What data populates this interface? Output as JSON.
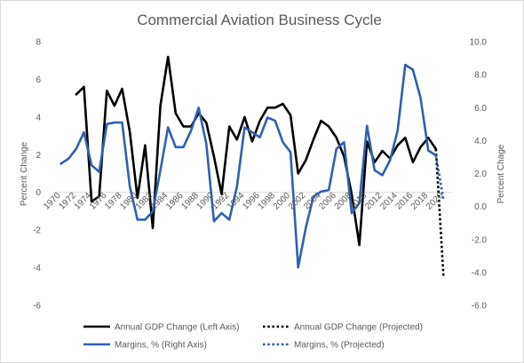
{
  "chart_data": {
    "type": "line",
    "title": "Commercial Aviation Business Cycle",
    "ylabel_left": "Percent Change",
    "ylabel_right": "Percent Chage",
    "ylim_left": [
      -6,
      8
    ],
    "ylim_right": [
      -6.0,
      10.0
    ],
    "yticks_left": [
      -6,
      -4,
      -2,
      0,
      2,
      4,
      6,
      8
    ],
    "yticks_right": [
      -6.0,
      -4.0,
      -2.0,
      0.0,
      2.0,
      4.0,
      6.0,
      8.0,
      10.0
    ],
    "ytick_labels_left": [
      "-6",
      "-4",
      "-2",
      "0",
      "2",
      "4",
      "6",
      "8"
    ],
    "ytick_labels_right": [
      "-6.0",
      "-4.0",
      "-2.0",
      "0.0",
      "2.0",
      "4.0",
      "6.0",
      "8.0",
      "10.0"
    ],
    "xlim": [
      1969,
      2021
    ],
    "xticks": [
      1970,
      1972,
      1974,
      1976,
      1978,
      1980,
      1982,
      1984,
      1986,
      1988,
      1990,
      1992,
      1994,
      1996,
      1998,
      2000,
      2002,
      2004,
      2006,
      2008,
      2010,
      2012,
      2014,
      2016,
      2018,
      2020
    ],
    "xtick_labels": [
      "1970",
      "1972",
      "1974",
      "1976",
      "1978",
      "1980",
      "1982",
      "1984",
      "1986",
      "1988",
      "1990",
      "1992",
      "1994",
      "1996",
      "1998",
      "2000",
      "2002",
      "2004",
      "2006",
      "2008",
      "2010",
      "2012",
      "2014",
      "2016",
      "2018",
      "2020"
    ],
    "grid": false,
    "legend_position": "bottom",
    "series": [
      {
        "name": "Annual GDP Change (Left Axis)",
        "axis": "left",
        "color": "#000000",
        "style": "solid",
        "x": [
          1972,
          1973,
          1974,
          1975,
          1976,
          1977,
          1978,
          1979,
          1980,
          1981,
          1982,
          1983,
          1984,
          1985,
          1986,
          1987,
          1988,
          1989,
          1990,
          1991,
          1992,
          1993,
          1994,
          1995,
          1996,
          1997,
          1998,
          1999,
          2000,
          2001,
          2002,
          2003,
          2004,
          2005,
          2006,
          2007,
          2008,
          2009,
          2010,
          2011,
          2012,
          2013,
          2014,
          2015,
          2016,
          2017,
          2018,
          2019
        ],
        "y": [
          5.2,
          5.6,
          -0.5,
          -0.2,
          5.4,
          4.6,
          5.5,
          3.2,
          -0.3,
          2.5,
          -1.9,
          4.6,
          7.2,
          4.2,
          3.5,
          3.5,
          4.2,
          3.7,
          1.9,
          -0.1,
          3.5,
          2.8,
          4.0,
          2.7,
          3.8,
          4.5,
          4.5,
          4.7,
          4.1,
          1.0,
          1.7,
          2.8,
          3.8,
          3.5,
          2.9,
          1.9,
          -0.1,
          -2.8,
          2.7,
          1.6,
          2.2,
          1.8,
          2.5,
          2.9,
          1.6,
          2.4,
          2.9,
          2.3
        ]
      },
      {
        "name": "Annual GDP Change (Projected)",
        "axis": "left",
        "color": "#000000",
        "style": "dotted",
        "x": [
          2019,
          2020
        ],
        "y": [
          2.3,
          -4.5
        ]
      },
      {
        "name": "Margins, % (Right Axis)",
        "axis": "right",
        "color": "#2f5fb3",
        "style": "solid",
        "x": [
          1970,
          1971,
          1972,
          1973,
          1974,
          1975,
          1976,
          1977,
          1978,
          1979,
          1980,
          1981,
          1982,
          1983,
          1984,
          1985,
          1986,
          1987,
          1988,
          1989,
          1990,
          1991,
          1992,
          1993,
          1994,
          1995,
          1996,
          1997,
          1998,
          1999,
          2000,
          2001,
          2002,
          2003,
          2004,
          2005,
          2006,
          2007,
          2008,
          2009,
          2010,
          2011,
          2012,
          2013,
          2014,
          2015,
          2016,
          2017,
          2018,
          2019
        ],
        "y": [
          2.6,
          2.9,
          3.5,
          4.5,
          2.5,
          2.1,
          5.0,
          5.1,
          5.1,
          1.2,
          -0.8,
          -0.8,
          -0.3,
          2.2,
          4.8,
          3.6,
          3.6,
          4.6,
          6.0,
          3.8,
          -0.9,
          -0.4,
          -0.8,
          1.2,
          4.8,
          4.5,
          4.2,
          5.4,
          5.2,
          3.9,
          3.3,
          -3.7,
          -1.3,
          0.6,
          0.9,
          1.0,
          3.5,
          3.9,
          -0.4,
          0.2,
          4.9,
          2.2,
          1.9,
          2.8,
          4.6,
          8.6,
          8.3,
          6.6,
          3.4,
          3.1
        ]
      },
      {
        "name": "Margins, % (Projected)",
        "axis": "right",
        "color": "#2f5fb3",
        "style": "dotted",
        "x": [
          2019,
          2020
        ],
        "y": [
          3.1,
          0.4
        ]
      }
    ]
  }
}
